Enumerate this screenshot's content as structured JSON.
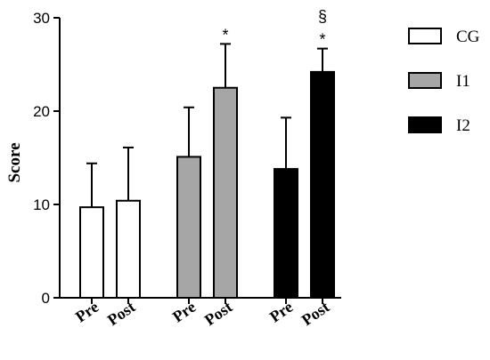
{
  "chart_data": {
    "type": "bar",
    "ylabel": "Score",
    "xlabel": "",
    "ylim": [
      0,
      30
    ],
    "yticks": [
      "0",
      "10",
      "20",
      "30"
    ],
    "categories": [
      "Pre",
      "Post",
      "Pre",
      "Post",
      "Pre",
      "Post"
    ],
    "series": [
      {
        "name": "CG",
        "color": "#ffffff",
        "values": [
          9.7,
          10.4,
          null,
          null,
          null,
          null
        ],
        "error": [
          4.7,
          5.7,
          null,
          null,
          null,
          null
        ]
      },
      {
        "name": "I1",
        "color": "#a6a6a6",
        "values": [
          null,
          null,
          15.1,
          22.5,
          null,
          null
        ],
        "error": [
          null,
          null,
          5.3,
          4.7,
          null,
          null
        ]
      },
      {
        "name": "I2",
        "color": "#000000",
        "values": [
          null,
          null,
          null,
          null,
          13.8,
          24.2
        ],
        "error": [
          null,
          null,
          null,
          null,
          5.5,
          2.5
        ]
      }
    ],
    "annotations": [
      {
        "bar_index": 3,
        "text": "*"
      },
      {
        "bar_index": 5,
        "text": "*"
      },
      {
        "bar_index": 5,
        "text": "§"
      }
    ],
    "legend": {
      "placement": "right",
      "entries": [
        "CG",
        "I1",
        "I2"
      ]
    },
    "grid": false
  }
}
